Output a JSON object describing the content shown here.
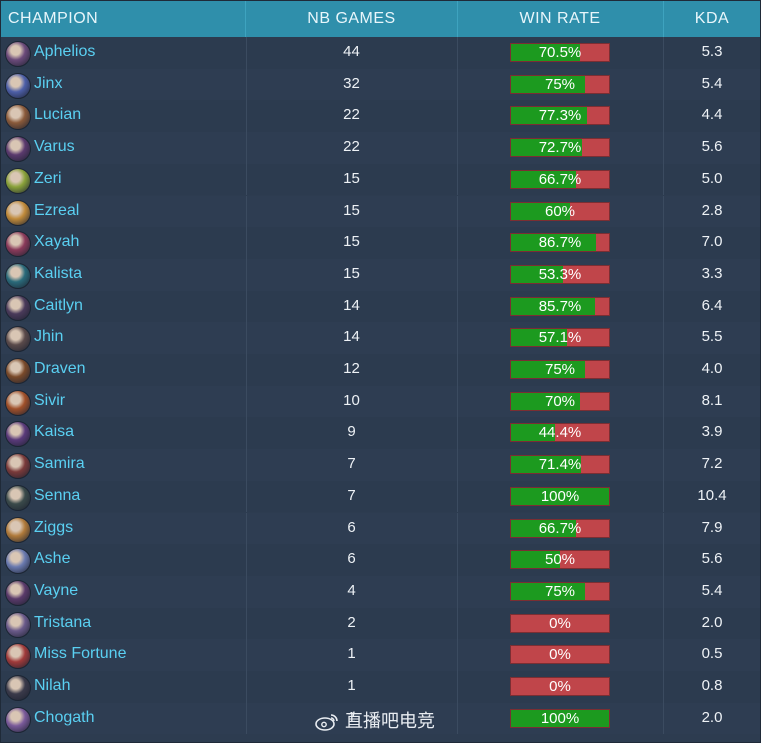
{
  "table": {
    "headers": {
      "champion": "CHAMPION",
      "games": "NB GAMES",
      "winrate": "WIN RATE",
      "kda": "KDA"
    },
    "rows": [
      {
        "name": "Aphelios",
        "games": "44",
        "win_label": "70.5%",
        "win": 0.705,
        "kda": "5.3",
        "avatar": "#6b4a7a"
      },
      {
        "name": "Jinx",
        "games": "32",
        "win_label": "75%",
        "win": 0.75,
        "kda": "5.4",
        "avatar": "#4d5fa8"
      },
      {
        "name": "Lucian",
        "games": "22",
        "win_label": "77.3%",
        "win": 0.773,
        "kda": "4.4",
        "avatar": "#8a5a3a"
      },
      {
        "name": "Varus",
        "games": "22",
        "win_label": "72.7%",
        "win": 0.727,
        "kda": "5.6",
        "avatar": "#5b3a6e"
      },
      {
        "name": "Zeri",
        "games": "15",
        "win_label": "66.7%",
        "win": 0.667,
        "kda": "5.0",
        "avatar": "#8aa23a"
      },
      {
        "name": "Ezreal",
        "games": "15",
        "win_label": "60%",
        "win": 0.6,
        "kda": "2.8",
        "avatar": "#c08a3a"
      },
      {
        "name": "Xayah",
        "games": "15",
        "win_label": "86.7%",
        "win": 0.867,
        "kda": "7.0",
        "avatar": "#8a3a5a"
      },
      {
        "name": "Kalista",
        "games": "15",
        "win_label": "53.3%",
        "win": 0.533,
        "kda": "3.3",
        "avatar": "#2a6a7a"
      },
      {
        "name": "Caitlyn",
        "games": "14",
        "win_label": "85.7%",
        "win": 0.857,
        "kda": "6.4",
        "avatar": "#4a3a5a"
      },
      {
        "name": "Jhin",
        "games": "14",
        "win_label": "57.1%",
        "win": 0.571,
        "kda": "5.5",
        "avatar": "#5a4a4a"
      },
      {
        "name": "Draven",
        "games": "12",
        "win_label": "75%",
        "win": 0.75,
        "kda": "4.0",
        "avatar": "#7a4a2a"
      },
      {
        "name": "Sivir",
        "games": "10",
        "win_label": "70%",
        "win": 0.7,
        "kda": "8.1",
        "avatar": "#a0502a"
      },
      {
        "name": "Kaisa",
        "games": "9",
        "win_label": "44.4%",
        "win": 0.444,
        "kda": "3.9",
        "avatar": "#5a3a7a"
      },
      {
        "name": "Samira",
        "games": "7",
        "win_label": "71.4%",
        "win": 0.714,
        "kda": "7.2",
        "avatar": "#7a3a3a"
      },
      {
        "name": "Senna",
        "games": "7",
        "win_label": "100%",
        "win": 1.0,
        "kda": "10.4",
        "avatar": "#3a4a4a"
      },
      {
        "name": "Ziggs",
        "games": "6",
        "win_label": "66.7%",
        "win": 0.667,
        "kda": "7.9",
        "avatar": "#b07a3a"
      },
      {
        "name": "Ashe",
        "games": "6",
        "win_label": "50%",
        "win": 0.5,
        "kda": "5.6",
        "avatar": "#6a7ab0"
      },
      {
        "name": "Vayne",
        "games": "4",
        "win_label": "75%",
        "win": 0.75,
        "kda": "5.4",
        "avatar": "#5a3a6a"
      },
      {
        "name": "Tristana",
        "games": "2",
        "win_label": "0%",
        "win": 0.0,
        "kda": "2.0",
        "avatar": "#6a5a8a"
      },
      {
        "name": "Miss Fortune",
        "games": "1",
        "win_label": "0%",
        "win": 0.0,
        "kda": "0.5",
        "avatar": "#a03a3a"
      },
      {
        "name": "Nilah",
        "games": "1",
        "win_label": "0%",
        "win": 0.0,
        "kda": "0.8",
        "avatar": "#3a3a4a"
      },
      {
        "name": "Chogath",
        "games": "1",
        "win_label": "100%",
        "win": 1.0,
        "kda": "2.0",
        "avatar": "#7a5a9a"
      }
    ]
  },
  "colors": {
    "win": "#1c9a1f",
    "loss": "#c0454a",
    "champion_text": "#5ad0f2",
    "header_bg": "#2f8fab"
  },
  "watermark": {
    "icon": "weibo-logo",
    "text": "直播吧电竞"
  }
}
